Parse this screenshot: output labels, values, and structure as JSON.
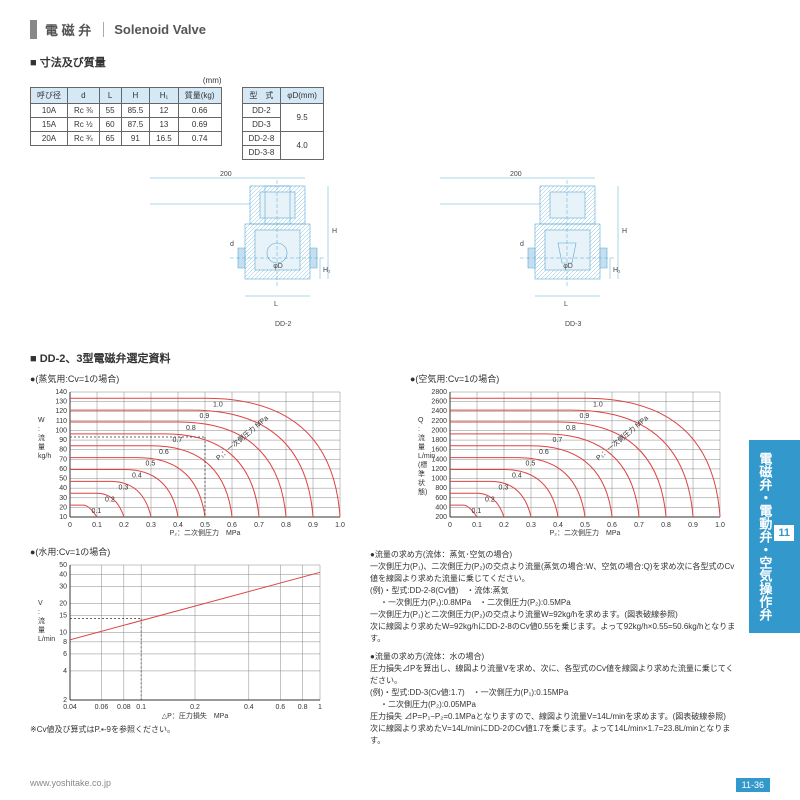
{
  "header": {
    "jp": "電 磁 弁",
    "en": "Solenoid Valve"
  },
  "section1": {
    "title": "■ 寸法及び質量",
    "unit": "(mm)",
    "table1": {
      "headers": [
        "呼び径",
        "d",
        "L",
        "H",
        "H₁",
        "質量(kg)"
      ],
      "rows": [
        [
          "10A",
          "Rc ⅜",
          "55",
          "85.5",
          "12",
          "0.66"
        ],
        [
          "15A",
          "Rc ½",
          "60",
          "87.5",
          "13",
          "0.69"
        ],
        [
          "20A",
          "Rc ¾",
          "65",
          "91",
          "16.5",
          "0.74"
        ]
      ]
    },
    "table2": {
      "headers": [
        "型　式",
        "φD(mm)"
      ],
      "rows": [
        [
          "DD-2",
          "9.5"
        ],
        [
          "DD-3",
          "9.5"
        ],
        [
          "DD-2-8",
          "4.0"
        ],
        [
          "DD-3-8",
          "4.0"
        ]
      ],
      "merge": [
        [
          0,
          1
        ],
        [
          2,
          3
        ]
      ]
    }
  },
  "diagrams": {
    "dim_200": "200",
    "labels": [
      "DD-2",
      "DD-3"
    ],
    "dims": {
      "L": "L",
      "H": "H",
      "H1": "H₁",
      "d": "d",
      "phiD": "φD"
    }
  },
  "section2": {
    "title": "■ DD-2、3型電磁弁選定資料"
  },
  "chart_steam": {
    "label": "●(蒸気用:Cv=1の場合)",
    "y_values": [
      "10",
      "20",
      "30",
      "40",
      "50",
      "60",
      "70",
      "80",
      "90",
      "100",
      "110",
      "120",
      "130",
      "140"
    ],
    "y_label": "W\n:\n流\n量\nkg/h",
    "x_values": [
      "0",
      "0.1",
      "0.2",
      "0.3",
      "0.4",
      "0.5",
      "0.6",
      "0.7",
      "0.8",
      "0.9",
      "1.0"
    ],
    "x_label": "P₂：二次側圧力　MPa",
    "curve_labels": [
      "0.1",
      "0.2",
      "0.3",
      "0.4",
      "0.5",
      "0.6",
      "0.7",
      "0.8",
      "0.9",
      "1.0"
    ],
    "curve_note": "P₁：一次側圧力 MPa"
  },
  "chart_air": {
    "label": "●(空気用:Cv=1の場合)",
    "y_values": [
      "200",
      "400",
      "600",
      "800",
      "1000",
      "1200",
      "1400",
      "1600",
      "1800",
      "2000",
      "2200",
      "2400",
      "2600",
      "2800"
    ],
    "y_label": "Q\n:\n流\n量\nL/min\n(標\n準\n状\n態)",
    "x_values": [
      "0",
      "0.1",
      "0.2",
      "0.3",
      "0.4",
      "0.5",
      "0.6",
      "0.7",
      "0.8",
      "0.9",
      "1.0"
    ],
    "x_label": "P₂：二次側圧力　MPa",
    "curve_labels": [
      "0.1",
      "0.2",
      "0.3",
      "0.4",
      "0.5",
      "0.6",
      "0.7",
      "0.8",
      "0.9",
      "1.0"
    ],
    "curve_note": "P₁：一次側圧力 MPa"
  },
  "chart_water": {
    "label": "●(水用:Cv=1の場合)",
    "y_values": [
      "2",
      "4",
      "6",
      "8",
      "10",
      "15",
      "20",
      "30",
      "40",
      "50"
    ],
    "y_label": "V\n:\n流\n量\nL/min",
    "x_values": [
      "0.04",
      "0.06",
      "0.08",
      "0.1",
      "0.2",
      "0.4",
      "0.6",
      "0.8",
      "1.0"
    ],
    "x_label": "△P：圧力損失　MPa"
  },
  "instructions": {
    "title1": "●流量の求め方(流体：蒸気･空気の場合)",
    "text1": "一次側圧力(P₁)、二次側圧力(P₂)の交点より流量(蒸気の場合:W、空気の場合:Q)を求め次に各型式のCv値を線図より求めた流量に乗じてください。",
    "ex_label": "(例)",
    "ex1_1": "・型式:DD-2-8(Cv値)　・流体:蒸気",
    "ex1_2": "・一次側圧力(P₁):0.8MPa　・二次側圧力(P₂):0.5MPa",
    "ex1_3": "一次側圧力(P₁)と二次側圧力(P₂)の交点より流量W=92kg/hを求めます。(図表破線参照)",
    "ex1_4": "次に線図より求めたW=92kg/hにDD-2-8のCv値0.55を乗じます。よって92kg/h×0.55=50.6kg/hとなります。",
    "title2": "●流量の求め方(流体：水の場合)",
    "text2": "圧力損失⊿Pを算出し、線図より流量Vを求め、次に、各型式のCv値を線図より求めた流量に乗じてください。",
    "ex2_1": "・型式:DD-3(Cv値:1.7)　・一次側圧力(P₁):0.15MPa",
    "ex2_2": "・二次側圧力(P₂):0.05MPa",
    "ex2_3": "圧力損失 ⊿P=P₁−P₂=0.1MPaとなりますので、線図より流量V=14L/minを求めます。(図表破線参照)",
    "ex2_4": "次に線図より求めたV=14L/minにDD-2のCv値1.7を乗じます。よって14L/min×1.7=23.8L/minとなります。"
  },
  "note": "※Cv値及び算式はP.▪-9を参照ください。",
  "sidetab": {
    "num": "11",
    "text": "電磁弁・電動弁・空気操作弁"
  },
  "footer": {
    "url": "www.yoshitake.co.jp",
    "page": "11-36"
  }
}
